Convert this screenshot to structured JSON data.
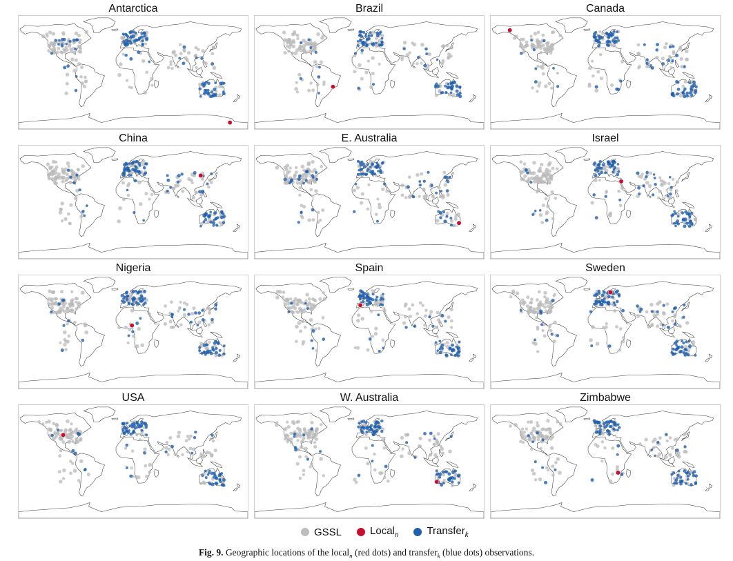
{
  "figure": {
    "panels": [
      {
        "title": "Antarctica",
        "local_point": {
          "lon": 162,
          "lat": -78
        },
        "transfer_focus": [
          "oceania",
          "europe",
          "americas"
        ]
      },
      {
        "title": "Brazil",
        "local_point": {
          "lon": -47,
          "lat": -23
        },
        "transfer_focus": [
          "europe",
          "oceania"
        ]
      },
      {
        "title": "Canada",
        "local_point": {
          "lon": -140,
          "lat": 64
        },
        "transfer_focus": [
          "europe",
          "oceania",
          "asia"
        ]
      },
      {
        "title": "China",
        "local_point": {
          "lon": 116,
          "lat": 40
        },
        "transfer_focus": [
          "europe",
          "oceania",
          "asia"
        ]
      },
      {
        "title": "E. Australia",
        "local_point": {
          "lon": 151,
          "lat": -33
        },
        "transfer_focus": [
          "europe",
          "americas",
          "asia"
        ]
      },
      {
        "title": "Israel",
        "local_point": {
          "lon": 35,
          "lat": 31
        },
        "transfer_focus": [
          "europe",
          "oceania",
          "asia"
        ]
      },
      {
        "title": "Nigeria",
        "local_point": {
          "lon": 8,
          "lat": 9
        },
        "transfer_focus": [
          "europe",
          "oceania",
          "asia"
        ]
      },
      {
        "title": "Spain",
        "local_point": {
          "lon": -4,
          "lat": 40
        },
        "transfer_focus": [
          "europe",
          "oceania"
        ]
      },
      {
        "title": "Sweden",
        "local_point": {
          "lon": 18,
          "lat": 60
        },
        "transfer_focus": [
          "europe",
          "oceania",
          "asia"
        ]
      },
      {
        "title": "USA",
        "local_point": {
          "lon": -100,
          "lat": 40
        },
        "transfer_focus": [
          "europe",
          "oceania"
        ]
      },
      {
        "title": "W. Australia",
        "local_point": {
          "lon": 116,
          "lat": -32
        },
        "transfer_focus": [
          "europe",
          "oceania"
        ]
      },
      {
        "title": "Zimbabwe",
        "local_point": {
          "lon": 30,
          "lat": -18
        },
        "transfer_focus": [
          "europe",
          "oceania"
        ]
      }
    ]
  },
  "legend": {
    "gssl": {
      "label": "GSSL",
      "color": "#bdbdbd"
    },
    "local": {
      "label": "Local",
      "sub": "n",
      "color": "#c8102e"
    },
    "transfer": {
      "label": "Transfer",
      "sub": "k",
      "color": "#1f5fae"
    }
  },
  "caption": {
    "fig_num": "Fig. 9.",
    "t1": " Geographic locations of the local",
    "s1": "n",
    "t2": " (red dots) and transfer",
    "s2": "k",
    "t3": " (blue dots) observations."
  }
}
